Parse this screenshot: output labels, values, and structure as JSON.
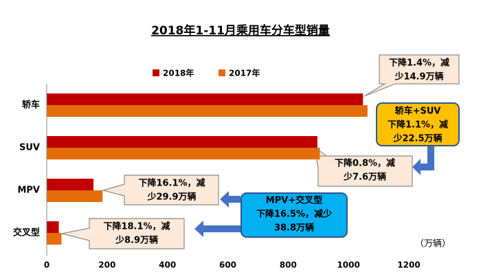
{
  "chart_data": {
    "type": "hbar",
    "title": "2018年1-11月乘用车分车型销量",
    "categories": [
      "轿车",
      "SUV",
      "MPV",
      "交叉型"
    ],
    "series": [
      {
        "name": "2018年",
        "color": "#c00000",
        "values": [
          1048,
          897,
          155,
          40
        ]
      },
      {
        "name": "2017年",
        "color": "#e46c0a",
        "values": [
          1063,
          905,
          185,
          49
        ]
      }
    ],
    "xlim": [
      0,
      1200
    ],
    "xticks": [
      0,
      200,
      400,
      600,
      800,
      1000,
      1200
    ],
    "unit_label": "（万辆）",
    "annotations": [
      {
        "lines": [
          "下降1.4%，减",
          "少14.9万辆"
        ]
      },
      {
        "lines": [
          "轿车+SUV",
          "下降1.1%，减",
          "少22.5万辆"
        ]
      },
      {
        "lines": [
          "下降0.8%，减",
          "少7.6万辆"
        ]
      },
      {
        "lines": [
          "下降16.1%，减",
          "少29.9万辆"
        ]
      },
      {
        "lines": [
          "MPV+交叉型",
          "下降16.5%，减少",
          "38.8万辆"
        ]
      },
      {
        "lines": [
          "下降18.1%，减",
          "少8.9万辆"
        ]
      }
    ]
  }
}
